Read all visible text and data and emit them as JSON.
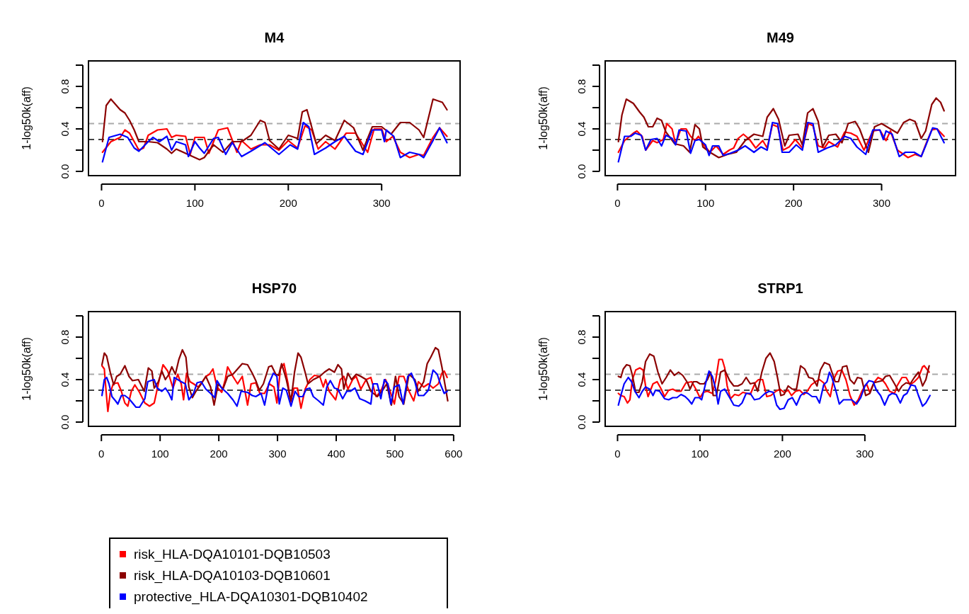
{
  "chart_data": [
    {
      "type": "line",
      "title": "M4",
      "ylabel": "1-log50k(aff)",
      "xlim": [
        -14,
        384
      ],
      "xticks": [
        0,
        100,
        200,
        300
      ],
      "ylim": [
        -0.04,
        1.04
      ],
      "yticks": [
        {
          "value": 0,
          "label": "0.0"
        },
        {
          "value": 0.2,
          "label": null
        },
        {
          "value": 0.4,
          "label": "0.4"
        },
        {
          "value": 0.6,
          "label": null
        },
        {
          "value": 0.8,
          "label": "0.8"
        },
        {
          "value": 1,
          "label": null
        }
      ],
      "legend": "bottom left",
      "ref_lines": [
        {
          "axis": "y",
          "value": 0.45,
          "color": "#aaaaaa",
          "line_style": "dashed"
        },
        {
          "axis": "y",
          "value": 0.3,
          "color": "#444444",
          "line_style": "dashed"
        }
      ],
      "series": [
        {
          "name": "risk_HLA-DQA10101-DQB10503",
          "color": "#ff0000",
          "x": [
            1,
            10,
            20,
            25,
            30,
            40,
            45,
            50,
            60,
            70,
            75,
            80,
            90,
            95,
            100,
            110,
            115,
            125,
            135,
            145,
            150,
            160,
            170,
            180,
            190,
            200,
            210,
            218,
            225,
            232,
            240,
            250,
            262,
            272,
            285,
            292,
            300,
            305,
            312,
            320,
            330,
            340,
            345,
            355,
            362,
            370
          ],
          "values": [
            0.18,
            0.28,
            0.32,
            0.39,
            0.36,
            0.2,
            0.22,
            0.34,
            0.39,
            0.4,
            0.32,
            0.34,
            0.33,
            0.16,
            0.32,
            0.32,
            0.17,
            0.39,
            0.41,
            0.18,
            0.29,
            0.21,
            0.25,
            0.25,
            0.2,
            0.29,
            0.22,
            0.43,
            0.39,
            0.21,
            0.28,
            0.21,
            0.36,
            0.36,
            0.18,
            0.4,
            0.4,
            0.28,
            0.33,
            0.18,
            0.13,
            0.16,
            0.15,
            0.32,
            0.41,
            0.33
          ]
        },
        {
          "name": "risk_HLA-DQA10103-DQB10601",
          "color": "#8b0000",
          "x": [
            1,
            5,
            10,
            20,
            25,
            30,
            35,
            40,
            50,
            60,
            70,
            75,
            80,
            90,
            100,
            105,
            110,
            120,
            130,
            140,
            150,
            160,
            170,
            175,
            180,
            190,
            200,
            210,
            215,
            220,
            230,
            240,
            250,
            260,
            270,
            280,
            290,
            300,
            310,
            320,
            330,
            340,
            345,
            355,
            365,
            370
          ],
          "values": [
            0.28,
            0.62,
            0.68,
            0.58,
            0.55,
            0.48,
            0.39,
            0.28,
            0.28,
            0.27,
            0.21,
            0.17,
            0.21,
            0.17,
            0.13,
            0.11,
            0.13,
            0.25,
            0.18,
            0.28,
            0.28,
            0.34,
            0.48,
            0.46,
            0.29,
            0.21,
            0.34,
            0.31,
            0.56,
            0.58,
            0.26,
            0.34,
            0.29,
            0.48,
            0.41,
            0.2,
            0.42,
            0.42,
            0.35,
            0.46,
            0.46,
            0.39,
            0.32,
            0.68,
            0.65,
            0.58
          ]
        },
        {
          "name": "protective_HLA-DQA10301-DQB10402",
          "color": "#0000ff",
          "x": [
            1,
            8,
            20,
            28,
            35,
            40,
            50,
            55,
            62,
            70,
            75,
            80,
            90,
            93,
            100,
            105,
            110,
            120,
            125,
            133,
            140,
            150,
            160,
            175,
            190,
            202,
            210,
            216,
            222,
            228,
            240,
            250,
            260,
            272,
            280,
            290,
            300,
            303,
            305,
            313,
            320,
            330,
            340,
            345,
            355,
            362,
            370
          ],
          "values": [
            0.09,
            0.32,
            0.35,
            0.32,
            0.22,
            0.19,
            0.28,
            0.32,
            0.28,
            0.33,
            0.2,
            0.28,
            0.25,
            0.14,
            0.28,
            0.22,
            0.17,
            0.31,
            0.32,
            0.16,
            0.27,
            0.14,
            0.19,
            0.27,
            0.16,
            0.25,
            0.21,
            0.46,
            0.42,
            0.16,
            0.22,
            0.28,
            0.33,
            0.19,
            0.16,
            0.39,
            0.39,
            0.28,
            0.39,
            0.33,
            0.13,
            0.18,
            0.16,
            0.13,
            0.29,
            0.41,
            0.27
          ]
        }
      ]
    },
    {
      "type": "line",
      "title": "M49",
      "ylabel": "1-log50k(aff)",
      "xlim": [
        -14,
        384
      ],
      "xticks": [
        0,
        100,
        200,
        300
      ],
      "ylim": [
        -0.04,
        1.04
      ],
      "yticks": [
        {
          "value": 0,
          "label": "0.0"
        },
        {
          "value": 0.2,
          "label": null
        },
        {
          "value": 0.4,
          "label": "0.4"
        },
        {
          "value": 0.6,
          "label": null
        },
        {
          "value": 0.8,
          "label": "0.8"
        },
        {
          "value": 1,
          "label": null
        }
      ],
      "ref_lines": [
        {
          "axis": "y",
          "value": 0.45,
          "color": "#aaaaaa",
          "line_style": "dashed"
        },
        {
          "axis": "y",
          "value": 0.3,
          "color": "#444444",
          "line_style": "dashed"
        }
      ],
      "series": [
        {
          "name": "risk_HLA-DQA10101-DQB10503",
          "color": "#ff0000",
          "x": [
            1,
            8,
            18,
            22,
            28,
            32,
            40,
            45,
            52,
            56,
            62,
            66,
            72,
            78,
            83,
            88,
            92,
            98,
            105,
            112,
            120,
            127,
            132,
            137,
            143,
            150,
            157,
            165,
            170,
            176,
            182,
            188,
            195,
            202,
            210,
            217,
            222,
            228,
            235,
            240,
            250,
            258,
            265,
            272,
            280,
            290,
            298,
            305,
            310,
            318,
            325,
            330,
            338,
            345,
            350,
            357,
            363,
            371
          ],
          "values": [
            0.18,
            0.29,
            0.36,
            0.38,
            0.33,
            0.2,
            0.29,
            0.27,
            0.3,
            0.45,
            0.4,
            0.26,
            0.4,
            0.4,
            0.33,
            0.29,
            0.33,
            0.25,
            0.18,
            0.24,
            0.16,
            0.2,
            0.22,
            0.31,
            0.35,
            0.3,
            0.22,
            0.29,
            0.22,
            0.44,
            0.42,
            0.2,
            0.23,
            0.3,
            0.22,
            0.45,
            0.43,
            0.24,
            0.22,
            0.28,
            0.23,
            0.37,
            0.36,
            0.33,
            0.2,
            0.38,
            0.39,
            0.29,
            0.38,
            0.2,
            0.16,
            0.13,
            0.16,
            0.14,
            0.25,
            0.39,
            0.4,
            0.33
          ]
        },
        {
          "name": "risk_HLA-DQA10103-DQB10601",
          "color": "#8b0000",
          "x": [
            1,
            5,
            10,
            18,
            25,
            30,
            35,
            40,
            45,
            50,
            55,
            65,
            75,
            82,
            88,
            93,
            97,
            105,
            115,
            125,
            135,
            145,
            155,
            165,
            170,
            177,
            183,
            190,
            195,
            205,
            210,
            216,
            222,
            228,
            233,
            240,
            248,
            255,
            262,
            270,
            275,
            285,
            292,
            300,
            310,
            318,
            325,
            332,
            338,
            345,
            350,
            357,
            362,
            367,
            371
          ],
          "values": [
            0.28,
            0.53,
            0.68,
            0.64,
            0.56,
            0.51,
            0.42,
            0.42,
            0.5,
            0.48,
            0.37,
            0.26,
            0.24,
            0.18,
            0.44,
            0.4,
            0.23,
            0.18,
            0.13,
            0.16,
            0.18,
            0.29,
            0.35,
            0.33,
            0.51,
            0.59,
            0.49,
            0.24,
            0.34,
            0.35,
            0.25,
            0.55,
            0.59,
            0.47,
            0.23,
            0.34,
            0.35,
            0.27,
            0.45,
            0.47,
            0.4,
            0.18,
            0.42,
            0.45,
            0.4,
            0.36,
            0.46,
            0.49,
            0.47,
            0.31,
            0.38,
            0.63,
            0.69,
            0.65,
            0.57
          ]
        },
        {
          "name": "protective_HLA-DQA10301-DQB10402",
          "color": "#0000ff",
          "x": [
            1,
            8,
            15,
            20,
            27,
            32,
            38,
            45,
            50,
            55,
            62,
            66,
            70,
            78,
            83,
            88,
            93,
            100,
            104,
            108,
            115,
            120,
            128,
            137,
            145,
            155,
            163,
            170,
            176,
            182,
            187,
            195,
            203,
            210,
            216,
            222,
            228,
            238,
            248,
            258,
            265,
            272,
            282,
            290,
            298,
            302,
            305,
            312,
            320,
            327,
            337,
            345,
            350,
            358,
            363,
            371
          ],
          "values": [
            0.09,
            0.33,
            0.33,
            0.36,
            0.34,
            0.2,
            0.3,
            0.31,
            0.24,
            0.34,
            0.31,
            0.25,
            0.39,
            0.38,
            0.17,
            0.29,
            0.3,
            0.25,
            0.15,
            0.24,
            0.24,
            0.15,
            0.17,
            0.2,
            0.24,
            0.18,
            0.23,
            0.2,
            0.46,
            0.45,
            0.18,
            0.18,
            0.25,
            0.2,
            0.46,
            0.45,
            0.18,
            0.22,
            0.25,
            0.33,
            0.31,
            0.23,
            0.16,
            0.39,
            0.39,
            0.3,
            0.38,
            0.35,
            0.14,
            0.18,
            0.18,
            0.14,
            0.24,
            0.41,
            0.4,
            0.27
          ]
        }
      ]
    },
    {
      "type": "line",
      "title": "HSP70",
      "ylabel": "1-log50k(aff)",
      "xlim": [
        -22,
        611
      ],
      "xticks": [
        0,
        100,
        200,
        300,
        400,
        500,
        600
      ],
      "ylim": [
        -0.04,
        1.04
      ],
      "yticks": [
        {
          "value": 0,
          "label": "0.0"
        },
        {
          "value": 0.2,
          "label": null
        },
        {
          "value": 0.4,
          "label": "0.4"
        },
        {
          "value": 0.6,
          "label": null
        },
        {
          "value": 0.8,
          "label": "0.8"
        },
        {
          "value": 1,
          "label": null
        }
      ],
      "ref_lines": [
        {
          "axis": "y",
          "value": 0.45,
          "color": "#aaaaaa",
          "line_style": "dashed"
        },
        {
          "axis": "y",
          "value": 0.3,
          "color": "#444444",
          "line_style": "dashed"
        }
      ],
      "series": [
        {
          "name": "risk_HLA-DQA10101-DQB10503",
          "color": "#ff0000",
          "x": [
            1,
            5,
            8,
            11,
            15,
            20,
            28,
            34,
            40,
            45,
            51,
            57,
            65,
            74,
            82,
            90,
            97,
            105,
            113,
            122,
            130,
            136,
            140,
            145,
            151,
            157,
            165,
            172,
            178,
            184,
            190,
            197,
            205,
            211,
            215,
            224,
            232,
            240,
            249,
            255,
            263,
            270,
            278,
            286,
            294,
            299,
            305,
            311,
            318,
            322,
            328,
            334,
            340,
            347,
            355,
            363,
            372,
            378,
            382,
            388,
            399,
            407,
            413,
            420,
            428,
            434,
            442,
            451,
            459,
            468,
            476,
            484,
            490,
            499,
            507,
            515,
            524,
            532,
            540,
            549,
            557,
            565,
            574,
            580,
            584,
            589
          ],
          "values": [
            0.53,
            0.5,
            0.29,
            0.1,
            0.27,
            0.36,
            0.37,
            0.29,
            0.18,
            0.15,
            0.29,
            0.35,
            0.28,
            0.18,
            0.15,
            0.18,
            0.36,
            0.54,
            0.48,
            0.32,
            0.45,
            0.36,
            0.21,
            0.46,
            0.38,
            0.36,
            0.33,
            0.38,
            0.43,
            0.45,
            0.5,
            0.33,
            0.28,
            0.4,
            0.52,
            0.43,
            0.36,
            0.43,
            0.16,
            0.36,
            0.37,
            0.27,
            0.27,
            0.36,
            0.33,
            0.18,
            0.5,
            0.55,
            0.36,
            0.18,
            0.32,
            0.32,
            0.13,
            0.31,
            0.4,
            0.44,
            0.43,
            0.33,
            0.4,
            0.29,
            0.21,
            0.4,
            0.43,
            0.31,
            0.4,
            0.43,
            0.31,
            0.4,
            0.42,
            0.24,
            0.29,
            0.4,
            0.32,
            0.17,
            0.43,
            0.43,
            0.29,
            0.2,
            0.38,
            0.33,
            0.36,
            0.32,
            0.36,
            0.46,
            0.48,
            0.42
          ]
        },
        {
          "name": "risk_HLA-DQA10103-DQB10601",
          "color": "#8b0000",
          "x": [
            1,
            5,
            9,
            15,
            21,
            26,
            32,
            40,
            47,
            53,
            63,
            73,
            80,
            86,
            90,
            97,
            103,
            109,
            115,
            120,
            126,
            132,
            138,
            144,
            149,
            155,
            161,
            170,
            178,
            186,
            192,
            199,
            207,
            215,
            224,
            232,
            240,
            249,
            257,
            263,
            269,
            276,
            285,
            290,
            297,
            302,
            307,
            315,
            323,
            329,
            335,
            340,
            347,
            352,
            361,
            372,
            380,
            388,
            397,
            403,
            409,
            413,
            420,
            426,
            434,
            442,
            451,
            459,
            470,
            478,
            486,
            494,
            501,
            507,
            515,
            524,
            534,
            540,
            549,
            555,
            561,
            569,
            574,
            580,
            586,
            590
          ],
          "values": [
            0.54,
            0.65,
            0.62,
            0.47,
            0.35,
            0.43,
            0.45,
            0.53,
            0.43,
            0.39,
            0.4,
            0.29,
            0.51,
            0.48,
            0.32,
            0.38,
            0.48,
            0.4,
            0.45,
            0.52,
            0.45,
            0.59,
            0.68,
            0.61,
            0.33,
            0.23,
            0.29,
            0.36,
            0.43,
            0.33,
            0.16,
            0.36,
            0.31,
            0.43,
            0.45,
            0.5,
            0.55,
            0.54,
            0.46,
            0.39,
            0.3,
            0.36,
            0.52,
            0.53,
            0.45,
            0.44,
            0.55,
            0.4,
            0.2,
            0.47,
            0.65,
            0.61,
            0.47,
            0.36,
            0.4,
            0.43,
            0.47,
            0.5,
            0.47,
            0.54,
            0.5,
            0.31,
            0.46,
            0.4,
            0.45,
            0.43,
            0.4,
            0.29,
            0.24,
            0.29,
            0.36,
            0.16,
            0.43,
            0.24,
            0.17,
            0.45,
            0.4,
            0.29,
            0.38,
            0.55,
            0.61,
            0.7,
            0.68,
            0.52,
            0.33,
            0.2
          ]
        },
        {
          "name": "protective_HLA-DQA10301-DQB10402",
          "color": "#0000ff",
          "x": [
            1,
            5,
            9,
            13,
            18,
            24,
            28,
            34,
            40,
            47,
            53,
            59,
            65,
            74,
            79,
            84,
            90,
            95,
            103,
            109,
            115,
            120,
            124,
            130,
            136,
            143,
            149,
            157,
            163,
            170,
            178,
            186,
            193,
            197,
            205,
            215,
            224,
            231,
            238,
            249,
            257,
            263,
            272,
            278,
            285,
            293,
            299,
            303,
            309,
            315,
            323,
            330,
            336,
            343,
            349,
            355,
            361,
            370,
            378,
            384,
            390,
            397,
            403,
            411,
            418,
            424,
            432,
            440,
            449,
            459,
            463,
            470,
            476,
            482,
            488,
            493,
            499,
            507,
            514,
            522,
            528,
            534,
            540,
            549,
            557,
            565,
            572,
            578,
            584,
            589
          ],
          "values": [
            0.25,
            0.4,
            0.42,
            0.36,
            0.24,
            0.2,
            0.17,
            0.25,
            0.25,
            0.22,
            0.18,
            0.14,
            0.14,
            0.22,
            0.38,
            0.39,
            0.4,
            0.32,
            0.29,
            0.32,
            0.27,
            0.21,
            0.42,
            0.4,
            0.38,
            0.36,
            0.21,
            0.27,
            0.37,
            0.38,
            0.31,
            0.27,
            0.23,
            0.39,
            0.32,
            0.27,
            0.21,
            0.15,
            0.29,
            0.28,
            0.25,
            0.24,
            0.27,
            0.16,
            0.36,
            0.46,
            0.43,
            0.17,
            0.32,
            0.3,
            0.15,
            0.29,
            0.24,
            0.24,
            0.31,
            0.32,
            0.24,
            0.2,
            0.16,
            0.33,
            0.39,
            0.32,
            0.31,
            0.22,
            0.29,
            0.29,
            0.32,
            0.22,
            0.2,
            0.17,
            0.36,
            0.36,
            0.22,
            0.4,
            0.36,
            0.17,
            0.33,
            0.35,
            0.17,
            0.43,
            0.46,
            0.38,
            0.25,
            0.25,
            0.3,
            0.49,
            0.45,
            0.35,
            0.27,
            0.29
          ]
        }
      ]
    },
    {
      "type": "line",
      "title": "STRP1",
      "ylabel": "1-log50k(aff)",
      "xlim": [
        -15,
        410
      ],
      "xticks": [
        0,
        100,
        200,
        300
      ],
      "ylim": [
        -0.04,
        1.04
      ],
      "yticks": [
        {
          "value": 0,
          "label": "0.0"
        },
        {
          "value": 0.2,
          "label": null
        },
        {
          "value": 0.4,
          "label": "0.4"
        },
        {
          "value": 0.6,
          "label": null
        },
        {
          "value": 0.8,
          "label": "0.8"
        },
        {
          "value": 1,
          "label": null
        }
      ],
      "ref_lines": [
        {
          "axis": "y",
          "value": 0.45,
          "color": "#aaaaaa",
          "line_style": "dashed"
        },
        {
          "axis": "y",
          "value": 0.3,
          "color": "#444444",
          "line_style": "dashed"
        }
      ],
      "series": [
        {
          "name": "risk_HLA-DQA10101-DQB10503",
          "color": "#ff0000",
          "x": [
            1,
            4,
            8,
            12,
            15,
            18,
            22,
            27,
            31,
            34,
            37,
            43,
            48,
            53,
            57,
            62,
            67,
            72,
            77,
            83,
            90,
            95,
            100,
            104,
            109,
            115,
            119,
            123,
            127,
            130,
            133,
            137,
            142,
            147,
            152,
            157,
            161,
            167,
            171,
            176,
            181,
            186,
            192,
            197,
            202,
            207,
            211,
            216,
            221,
            226,
            230,
            235,
            240,
            245,
            250,
            254,
            258,
            262,
            267,
            272,
            277,
            282,
            287,
            292,
            297,
            302,
            306,
            311,
            316,
            321,
            325,
            330,
            336,
            339,
            345,
            350,
            355,
            360,
            365,
            370,
            372,
            378
          ],
          "values": [
            0.27,
            0.25,
            0.24,
            0.18,
            0.21,
            0.4,
            0.49,
            0.51,
            0.49,
            0.34,
            0.24,
            0.36,
            0.38,
            0.31,
            0.24,
            0.3,
            0.31,
            0.29,
            0.29,
            0.37,
            0.38,
            0.31,
            0.23,
            0.28,
            0.29,
            0.27,
            0.39,
            0.59,
            0.59,
            0.51,
            0.34,
            0.22,
            0.26,
            0.25,
            0.28,
            0.27,
            0.26,
            0.37,
            0.4,
            0.4,
            0.24,
            0.25,
            0.29,
            0.31,
            0.28,
            0.3,
            0.25,
            0.29,
            0.3,
            0.26,
            0.29,
            0.35,
            0.38,
            0.4,
            0.37,
            0.29,
            0.24,
            0.4,
            0.48,
            0.49,
            0.4,
            0.25,
            0.16,
            0.21,
            0.3,
            0.36,
            0.28,
            0.37,
            0.42,
            0.4,
            0.36,
            0.29,
            0.27,
            0.34,
            0.42,
            0.42,
            0.35,
            0.38,
            0.42,
            0.52,
            0.53,
            0.47
          ]
        },
        {
          "name": "risk_HLA-DQA10103-DQB10601",
          "color": "#8b0000",
          "x": [
            1,
            4,
            7,
            11,
            15,
            18,
            22,
            26,
            30,
            34,
            39,
            44,
            49,
            54,
            59,
            64,
            69,
            74,
            79,
            85,
            88,
            92,
            96,
            100,
            105,
            109,
            113,
            116,
            120,
            125,
            130,
            136,
            141,
            146,
            151,
            156,
            161,
            166,
            170,
            175,
            180,
            185,
            190,
            194,
            198,
            202,
            207,
            212,
            217,
            222,
            227,
            232,
            237,
            242,
            246,
            251,
            257,
            260,
            264,
            268,
            273,
            278,
            282,
            287,
            291,
            296,
            301,
            306,
            311,
            316,
            321,
            325,
            330,
            336,
            341,
            345,
            350,
            355,
            360,
            365,
            370,
            374,
            378
          ],
          "values": [
            0.43,
            0.42,
            0.5,
            0.54,
            0.53,
            0.44,
            0.28,
            0.28,
            0.38,
            0.57,
            0.64,
            0.62,
            0.47,
            0.36,
            0.42,
            0.49,
            0.44,
            0.47,
            0.44,
            0.37,
            0.31,
            0.38,
            0.38,
            0.36,
            0.36,
            0.4,
            0.47,
            0.25,
            0.25,
            0.47,
            0.49,
            0.39,
            0.34,
            0.34,
            0.36,
            0.42,
            0.36,
            0.37,
            0.29,
            0.47,
            0.6,
            0.65,
            0.57,
            0.42,
            0.25,
            0.26,
            0.34,
            0.31,
            0.31,
            0.53,
            0.5,
            0.42,
            0.41,
            0.34,
            0.49,
            0.56,
            0.54,
            0.47,
            0.38,
            0.38,
            0.52,
            0.53,
            0.4,
            0.36,
            0.42,
            0.41,
            0.25,
            0.27,
            0.37,
            0.38,
            0.39,
            0.43,
            0.44,
            0.36,
            0.29,
            0.34,
            0.37,
            0.36,
            0.42,
            0.47,
            0.34,
            0.4,
            0.53
          ]
        },
        {
          "name": "protective_HLA-DQA10301-DQB10402",
          "color": "#0000ff",
          "x": [
            1,
            4,
            8,
            13,
            17,
            21,
            26,
            30,
            34,
            39,
            43,
            46,
            51,
            57,
            62,
            67,
            72,
            77,
            82,
            86,
            90,
            94,
            99,
            102,
            108,
            111,
            115,
            119,
            122,
            125,
            130,
            136,
            141,
            147,
            151,
            156,
            161,
            166,
            172,
            179,
            184,
            189,
            193,
            197,
            202,
            207,
            212,
            217,
            222,
            227,
            231,
            236,
            241,
            245,
            250,
            254,
            257,
            260,
            265,
            269,
            274,
            279,
            284,
            290,
            295,
            300,
            305,
            310,
            314,
            319,
            324,
            329,
            333,
            338,
            343,
            347,
            351,
            356,
            361,
            365,
            370,
            374,
            379
          ],
          "values": [
            0.16,
            0.25,
            0.36,
            0.42,
            0.38,
            0.29,
            0.23,
            0.29,
            0.33,
            0.31,
            0.25,
            0.3,
            0.29,
            0.22,
            0.21,
            0.23,
            0.23,
            0.26,
            0.24,
            0.21,
            0.17,
            0.23,
            0.23,
            0.21,
            0.4,
            0.48,
            0.43,
            0.31,
            0.17,
            0.29,
            0.31,
            0.23,
            0.16,
            0.15,
            0.18,
            0.27,
            0.27,
            0.21,
            0.22,
            0.27,
            0.29,
            0.28,
            0.16,
            0.12,
            0.13,
            0.21,
            0.23,
            0.16,
            0.25,
            0.28,
            0.27,
            0.24,
            0.24,
            0.18,
            0.35,
            0.38,
            0.47,
            0.42,
            0.29,
            0.17,
            0.21,
            0.21,
            0.21,
            0.17,
            0.23,
            0.34,
            0.39,
            0.38,
            0.3,
            0.25,
            0.16,
            0.25,
            0.27,
            0.26,
            0.18,
            0.25,
            0.27,
            0.35,
            0.34,
            0.25,
            0.15,
            0.18,
            0.25
          ]
        }
      ]
    }
  ]
}
